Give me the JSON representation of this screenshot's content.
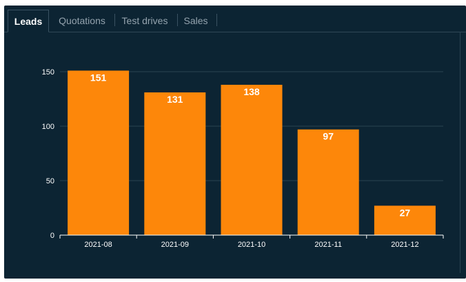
{
  "tabs": [
    {
      "label": "Leads",
      "active": true
    },
    {
      "label": "Quotations",
      "active": false
    },
    {
      "label": "Test drives",
      "active": false
    },
    {
      "label": "Sales",
      "active": false
    }
  ],
  "colors": {
    "panel_background": "#0c2433",
    "bar": "#fd870a",
    "axis_text": "#ffffff",
    "gridline": "#2a4352",
    "inactive_tab_text": "#94a3ae"
  },
  "chart_data": {
    "type": "bar",
    "categories": [
      "2021-08",
      "2021-09",
      "2021-10",
      "2021-11",
      "2021-12"
    ],
    "values": [
      151,
      131,
      138,
      97,
      27
    ],
    "title": "",
    "xlabel": "",
    "ylabel": "",
    "ylim": [
      0,
      150
    ],
    "yticks": [
      0,
      50,
      100,
      150
    ],
    "grid": true,
    "data_labels": true,
    "legend": "none"
  }
}
